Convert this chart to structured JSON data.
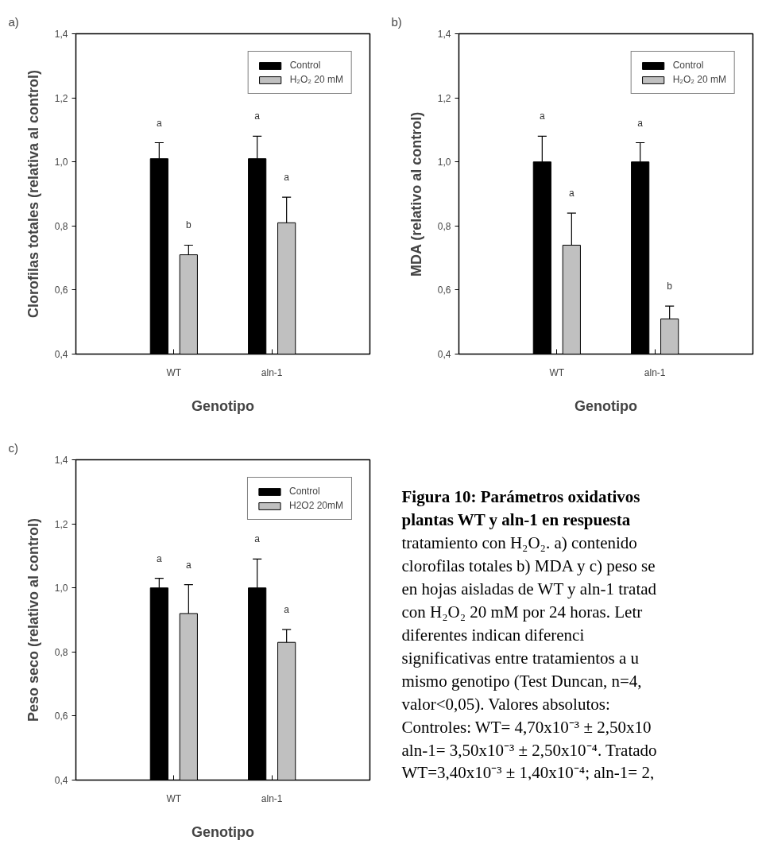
{
  "chart_data": [
    {
      "type": "bar",
      "title": "a)",
      "xlabel": "Genotipo",
      "ylabel": "Clorofilas totales (relativa al control)",
      "categories": [
        "WT",
        "aln-1"
      ],
      "series": [
        {
          "name": "Control",
          "color": "#000000",
          "values": [
            1.01,
            1.01
          ],
          "errors": [
            [
              1.01,
              1.06
            ],
            [
              1.01,
              1.08
            ]
          ]
        },
        {
          "name": "H₂O₂ 20 mM",
          "color": "#c0c0c0",
          "values": [
            0.71,
            0.81
          ],
          "errors": [
            [
              0.71,
              0.74
            ],
            [
              0.81,
              0.89
            ]
          ]
        }
      ],
      "ylim": [
        0.4,
        1.4
      ],
      "yticks": [
        {
          "value": 0.4,
          "label": "0,4"
        },
        {
          "value": 0.6,
          "label": "0,6"
        },
        {
          "value": 0.8,
          "label": "0,8"
        },
        {
          "value": 1.0,
          "label": "1,0"
        },
        {
          "value": 1.2,
          "label": "1,2"
        },
        {
          "value": 1.4,
          "label": "1,4"
        }
      ],
      "grid": false,
      "legend": "top right",
      "annotations": [
        "a",
        "b",
        "a",
        "a"
      ]
    },
    {
      "type": "bar",
      "title": "b)",
      "xlabel": "Genotipo",
      "ylabel": "MDA (relativo al control)",
      "categories": [
        "WT",
        "aln-1"
      ],
      "series": [
        {
          "name": "Control",
          "color": "#000000",
          "values": [
            1.0,
            1.0
          ],
          "errors": [
            [
              1.0,
              1.08
            ],
            [
              1.0,
              1.06
            ]
          ]
        },
        {
          "name": "H₂O₂ 20 mM",
          "color": "#c0c0c0",
          "values": [
            0.74,
            0.51
          ],
          "errors": [
            [
              0.74,
              0.84
            ],
            [
              0.51,
              0.55
            ]
          ]
        }
      ],
      "ylim": [
        0.4,
        1.4
      ],
      "yticks": [
        {
          "value": 0.4,
          "label": "0,4"
        },
        {
          "value": 0.6,
          "label": "0,6"
        },
        {
          "value": 0.8,
          "label": "0,8"
        },
        {
          "value": 1.0,
          "label": "1,0"
        },
        {
          "value": 1.2,
          "label": "1,2"
        },
        {
          "value": 1.4,
          "label": "1,4"
        }
      ],
      "grid": false,
      "legend": "top right",
      "annotations": [
        "a",
        "a",
        "a",
        "b"
      ]
    },
    {
      "type": "bar",
      "title": "c)",
      "xlabel": "Genotipo",
      "ylabel": "Peso seco (relativo al control)",
      "categories": [
        "WT",
        "aln-1"
      ],
      "series": [
        {
          "name": "Control",
          "color": "#000000",
          "values": [
            1.0,
            1.0
          ],
          "errors": [
            [
              1.0,
              1.03
            ],
            [
              1.0,
              1.09
            ]
          ]
        },
        {
          "name": "H2O2 20mM",
          "color": "#c0c0c0",
          "values": [
            0.92,
            0.83
          ],
          "errors": [
            [
              0.92,
              1.01
            ],
            [
              0.83,
              0.87
            ]
          ]
        }
      ],
      "ylim": [
        0.4,
        1.4
      ],
      "yticks": [
        {
          "value": 0.4,
          "label": "0,4"
        },
        {
          "value": 0.6,
          "label": "0,6"
        },
        {
          "value": 0.8,
          "label": "0,8"
        },
        {
          "value": 1.0,
          "label": "1,0"
        },
        {
          "value": 1.2,
          "label": "1,2"
        },
        {
          "value": 1.4,
          "label": "1,4"
        }
      ],
      "grid": false,
      "legend": "top right",
      "annotations": [
        "a",
        "a",
        "a",
        "a"
      ]
    },
    {
      "type": "other",
      "annotations": [
        "Figura 10: Parámetros oxidativos",
        "plantas WT y aln-1 en respuesta",
        "tratamiento con H₂O₂. a) contenido",
        "clorofilas totales b) MDA y c) peso se",
        "en hojas aisladas de WT y aln-1 tratad",
        "con H₂O₂ 20 mM por 24 horas. Letr",
        "diferentes        indican        diferenci",
        "significativas entre tratamientos a u",
        "mismo genotipo (Test Duncan, n=4,",
        "valor<0,05).    Valores    absolutos:",
        "Controles: WT= 4,70x10⁻³ ± 2,50x10",
        "aln-1= 3,50x10⁻³ ± 2,50x10⁻⁴. Tratado",
        "WT=3,40x10⁻³ ± 1,40x10⁻⁴; aln-1= 2,"
      ]
    }
  ]
}
